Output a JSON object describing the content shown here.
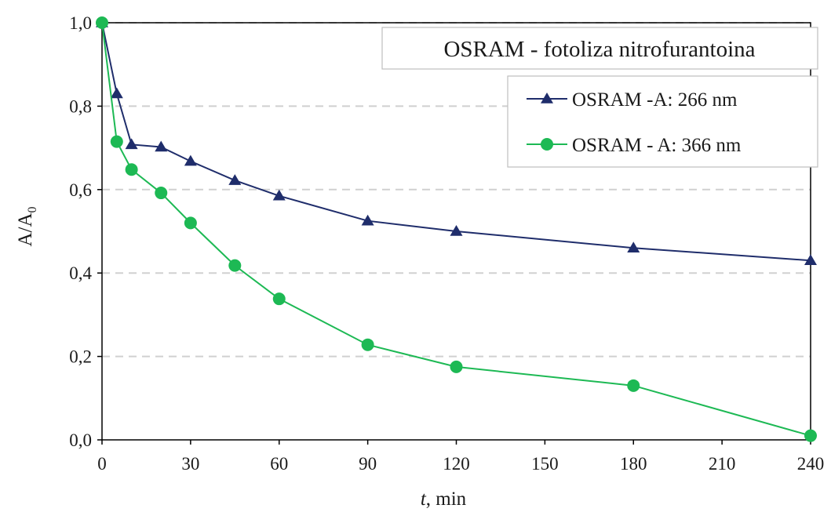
{
  "chart_data": {
    "type": "line",
    "title": "OSRAM - fotoliza nitrofurantoina",
    "xlabel": {
      "var": "t",
      "unit": ", min"
    },
    "ylabel": {
      "base": "A/A",
      "sub": "0"
    },
    "xlim": [
      0,
      240
    ],
    "ylim": [
      0,
      1.0
    ],
    "x_ticks": [
      0,
      30,
      60,
      90,
      120,
      150,
      180,
      210,
      240
    ],
    "y_ticks": [
      "0,0",
      "0,2",
      "0,4",
      "0,6",
      "0,8",
      "1,0"
    ],
    "y_tick_values": [
      0,
      0.2,
      0.4,
      0.6,
      0.8,
      1.0
    ],
    "grid": "horizontal dashed",
    "legend_position": "top-right",
    "series": [
      {
        "name": "OSRAM -A: 266 nm",
        "color": "#1f2d6b",
        "marker": "triangle",
        "x": [
          0,
          5,
          10,
          20,
          30,
          45,
          60,
          90,
          120,
          180,
          240
        ],
        "y": [
          1.0,
          0.83,
          0.708,
          0.702,
          0.668,
          0.622,
          0.585,
          0.525,
          0.5,
          0.46,
          0.43
        ]
      },
      {
        "name": "OSRAM - A: 366 nm",
        "color": "#1db954",
        "marker": "circle",
        "x": [
          0,
          5,
          10,
          20,
          30,
          45,
          60,
          90,
          120,
          180,
          240
        ],
        "y": [
          1.0,
          0.715,
          0.648,
          0.592,
          0.52,
          0.418,
          0.338,
          0.228,
          0.175,
          0.13,
          0.01
        ]
      }
    ]
  }
}
